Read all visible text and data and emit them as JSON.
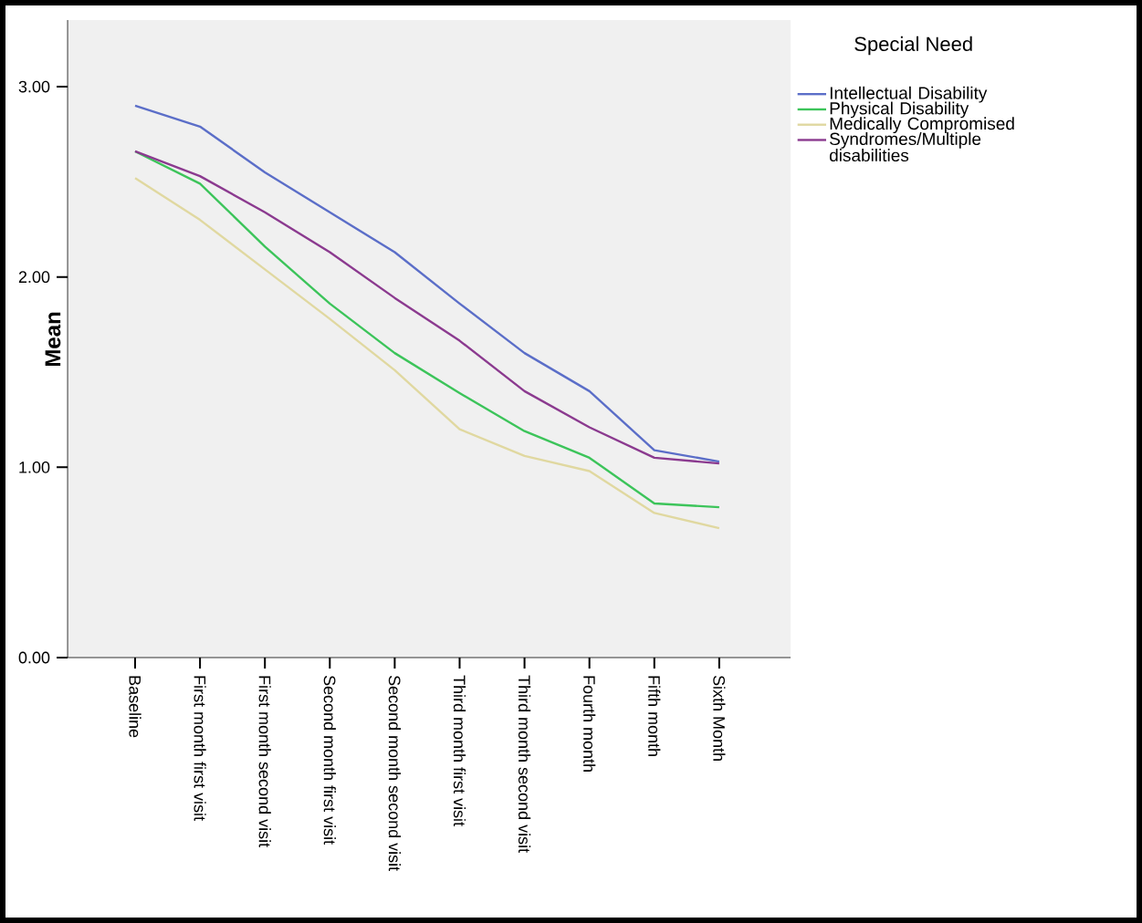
{
  "chart_data": {
    "type": "line",
    "ylabel": "Mean",
    "legend_title": "Special Need",
    "legend": "top right",
    "categories": [
      "Baseline",
      "First month first visit",
      "First month second visit",
      "Second month first visit",
      "Second month second visit",
      "Third month first visit",
      "Third month second visit",
      "Fourth month",
      "Fifth month",
      "Sixth Month"
    ],
    "ylim": [
      0,
      3.35
    ],
    "yticks": [
      {
        "value": 0,
        "label": "0.00"
      },
      {
        "value": 1,
        "label": "1.00"
      },
      {
        "value": 2,
        "label": "2.00"
      },
      {
        "value": 3,
        "label": "3.00"
      }
    ],
    "series": [
      {
        "name": "Intellectual Disability",
        "color": "#5b6ec8",
        "values": [
          2.9,
          2.79,
          2.55,
          2.34,
          2.13,
          1.86,
          1.6,
          1.4,
          1.09,
          1.03
        ]
      },
      {
        "name": "Physical Disability",
        "color": "#3cc45a",
        "values": [
          2.66,
          2.49,
          2.16,
          1.86,
          1.6,
          1.39,
          1.19,
          1.05,
          0.81,
          0.79
        ]
      },
      {
        "name": "Medically Compromised",
        "color": "#e0d8a0",
        "values": [
          2.52,
          2.3,
          2.04,
          1.78,
          1.51,
          1.2,
          1.06,
          0.98,
          0.76,
          0.68
        ]
      },
      {
        "name": "Syndromes/Multiple disabilities",
        "color": "#8b3a8f",
        "values": [
          2.66,
          2.53,
          2.34,
          2.13,
          1.89,
          1.665,
          1.4,
          1.21,
          1.05,
          1.02
        ]
      }
    ]
  }
}
